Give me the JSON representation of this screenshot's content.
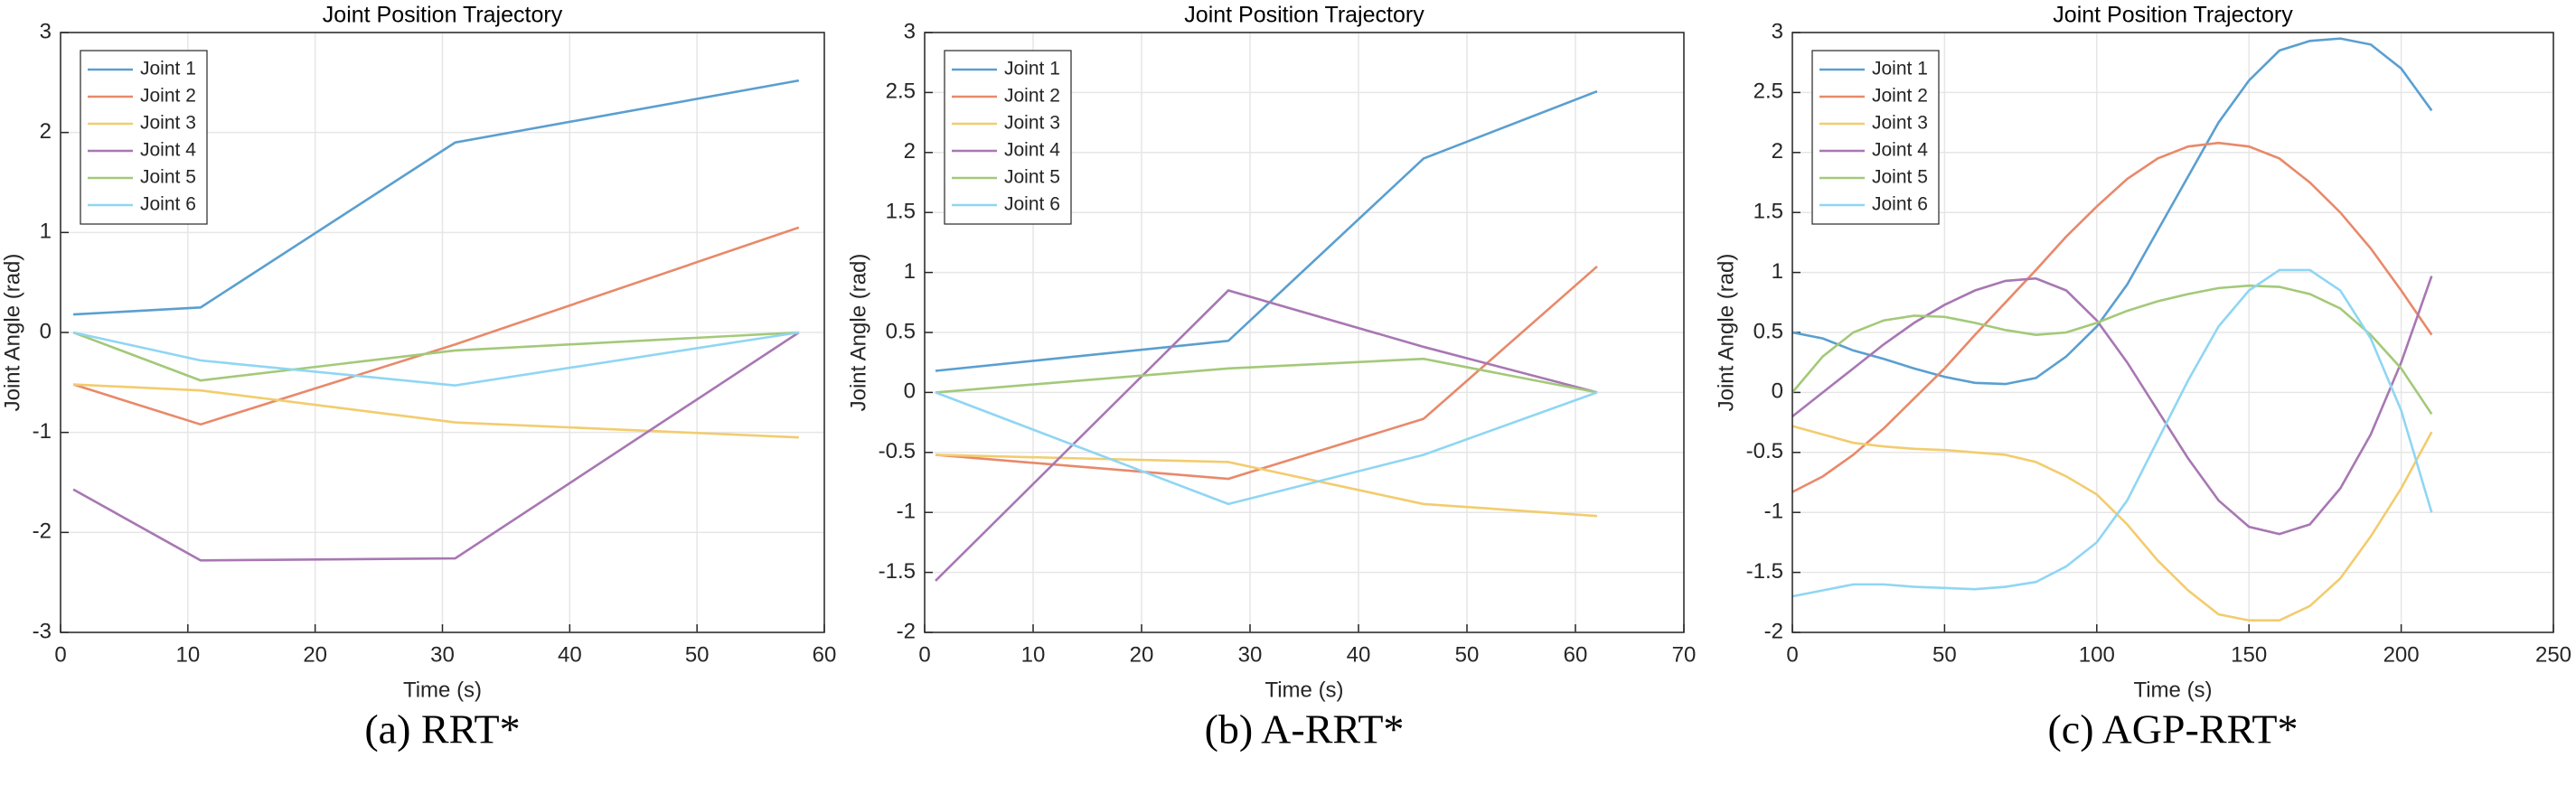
{
  "chart_data": [
    {
      "type": "line",
      "title": "Joint Position Trajectory",
      "xlabel": "Time (s)",
      "ylabel": "Joint Angle (rad)",
      "caption": "(a) RRT*",
      "x": [
        1,
        11,
        31,
        58
      ],
      "xlim": [
        0,
        60
      ],
      "xticks": [
        0,
        10,
        20,
        30,
        40,
        50,
        60
      ],
      "ylim": [
        -3,
        3
      ],
      "yticks": [
        -3,
        -2,
        -1,
        0,
        1,
        2,
        3
      ],
      "grid": true,
      "legend": "upper left",
      "series": [
        {
          "name": "Joint 1",
          "color": "#5a9fd0",
          "values": [
            0.18,
            0.25,
            1.9,
            2.52
          ]
        },
        {
          "name": "Joint 2",
          "color": "#e8896a",
          "values": [
            -0.52,
            -0.92,
            -0.12,
            1.05
          ]
        },
        {
          "name": "Joint 3",
          "color": "#f2cc6e",
          "values": [
            -0.52,
            -0.58,
            -0.9,
            -1.05
          ]
        },
        {
          "name": "Joint 4",
          "color": "#a877b3",
          "values": [
            -1.57,
            -2.28,
            -2.26,
            0
          ]
        },
        {
          "name": "Joint 5",
          "color": "#a3c979",
          "values": [
            0,
            -0.48,
            -0.18,
            0
          ]
        },
        {
          "name": "Joint 6",
          "color": "#8fd6f3",
          "values": [
            0,
            -0.28,
            -0.53,
            0
          ]
        }
      ]
    },
    {
      "type": "line",
      "title": "Joint Position Trajectory",
      "xlabel": "Time (s)",
      "ylabel": "Joint Angle (rad)",
      "caption": "(b) A-RRT*",
      "x": [
        1,
        28,
        46,
        62
      ],
      "xlim": [
        0,
        70
      ],
      "xticks": [
        0,
        10,
        20,
        30,
        40,
        50,
        60,
        70
      ],
      "ylim": [
        -2,
        3
      ],
      "yticks": [
        -2,
        -1.5,
        -1,
        -0.5,
        0,
        0.5,
        1,
        1.5,
        2,
        2.5,
        3
      ],
      "grid": true,
      "legend": "upper left",
      "series": [
        {
          "name": "Joint 1",
          "color": "#5a9fd0",
          "values": [
            0.18,
            0.43,
            1.95,
            2.51
          ]
        },
        {
          "name": "Joint 2",
          "color": "#e8896a",
          "values": [
            -0.52,
            -0.72,
            -0.22,
            1.05
          ]
        },
        {
          "name": "Joint 3",
          "color": "#f2cc6e",
          "values": [
            -0.52,
            -0.58,
            -0.93,
            -1.03
          ]
        },
        {
          "name": "Joint 4",
          "color": "#a877b3",
          "values": [
            -1.57,
            0.85,
            0.38,
            0
          ]
        },
        {
          "name": "Joint 5",
          "color": "#a3c979",
          "values": [
            0,
            0.2,
            0.28,
            0
          ]
        },
        {
          "name": "Joint 6",
          "color": "#8fd6f3",
          "values": [
            0,
            -0.93,
            -0.52,
            0
          ]
        }
      ]
    },
    {
      "type": "line",
      "title": "Joint Position Trajectory",
      "xlabel": "Time (s)",
      "ylabel": "Joint Angle (rad)",
      "caption": "(c) AGP-RRT*",
      "x": [
        0,
        10,
        20,
        30,
        40,
        50,
        60,
        70,
        80,
        90,
        100,
        110,
        120,
        130,
        140,
        150,
        160,
        170,
        180,
        190,
        200,
        210
      ],
      "xlim": [
        0,
        250
      ],
      "xticks": [
        0,
        50,
        100,
        150,
        200,
        250
      ],
      "ylim": [
        -2,
        3
      ],
      "yticks": [
        -2,
        -1.5,
        -1,
        -0.5,
        0,
        0.5,
        1,
        1.5,
        2,
        2.5,
        3
      ],
      "grid": true,
      "legend": "upper left",
      "series": [
        {
          "name": "Joint 1",
          "color": "#5a9fd0",
          "values": [
            0.5,
            0.45,
            0.35,
            0.28,
            0.2,
            0.13,
            0.08,
            0.07,
            0.12,
            0.3,
            0.55,
            0.9,
            1.35,
            1.8,
            2.25,
            2.6,
            2.85,
            2.93,
            2.95,
            2.9,
            2.7,
            2.35
          ]
        },
        {
          "name": "Joint 2",
          "color": "#e8896a",
          "values": [
            -0.83,
            -0.7,
            -0.52,
            -0.3,
            -0.05,
            0.2,
            0.48,
            0.75,
            1.02,
            1.3,
            1.55,
            1.78,
            1.95,
            2.05,
            2.08,
            2.05,
            1.95,
            1.75,
            1.5,
            1.2,
            0.85,
            0.48
          ]
        },
        {
          "name": "Joint 3",
          "color": "#f2cc6e",
          "values": [
            -0.28,
            -0.35,
            -0.42,
            -0.45,
            -0.47,
            -0.48,
            -0.5,
            -0.52,
            -0.58,
            -0.7,
            -0.85,
            -1.1,
            -1.4,
            -1.65,
            -1.85,
            -1.9,
            -1.9,
            -1.78,
            -1.55,
            -1.2,
            -0.8,
            -0.33
          ]
        },
        {
          "name": "Joint 4",
          "color": "#a877b3",
          "values": [
            -0.2,
            0,
            0.2,
            0.4,
            0.58,
            0.73,
            0.85,
            0.93,
            0.95,
            0.85,
            0.6,
            0.25,
            -0.15,
            -0.55,
            -0.9,
            -1.12,
            -1.18,
            -1.1,
            -0.8,
            -0.35,
            0.25,
            0.97
          ]
        },
        {
          "name": "Joint 5",
          "color": "#a3c979",
          "values": [
            0,
            0.3,
            0.5,
            0.6,
            0.64,
            0.63,
            0.58,
            0.52,
            0.48,
            0.5,
            0.58,
            0.68,
            0.76,
            0.82,
            0.87,
            0.89,
            0.88,
            0.82,
            0.7,
            0.48,
            0.2,
            -0.18
          ]
        },
        {
          "name": "Joint 6",
          "color": "#8fd6f3",
          "values": [
            -1.7,
            -1.65,
            -1.6,
            -1.6,
            -1.62,
            -1.63,
            -1.64,
            -1.62,
            -1.58,
            -1.45,
            -1.25,
            -0.9,
            -0.4,
            0.1,
            0.55,
            0.85,
            1.02,
            1.02,
            0.85,
            0.45,
            -0.15,
            -1.0
          ]
        }
      ]
    }
  ]
}
